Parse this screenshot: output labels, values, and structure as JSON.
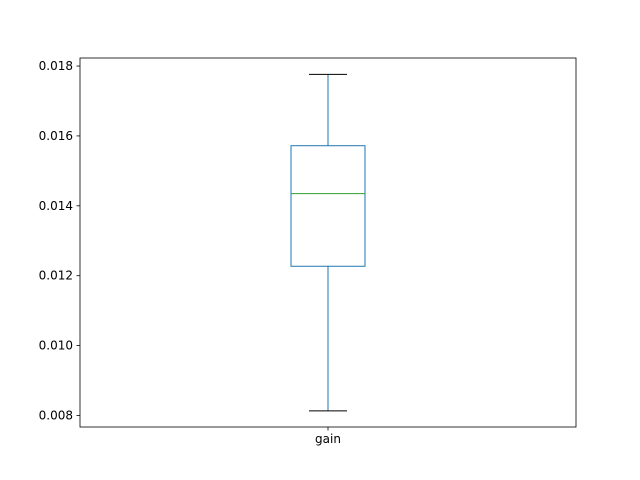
{
  "chart_data": {
    "type": "box",
    "categories": [
      "gain"
    ],
    "boxes": [
      {
        "category": "gain",
        "whisker_low": 0.00813,
        "q1": 0.01227,
        "median": 0.01435,
        "q3": 0.01572,
        "whisker_high": 0.01776
      }
    ],
    "title": "",
    "xlabel": "",
    "ylabel": "",
    "ylim": [
      0.00767,
      0.01823
    ],
    "yticks": [
      0.008,
      0.01,
      0.012,
      0.014,
      0.016,
      0.018
    ],
    "ytick_labels": [
      "0.008",
      "0.010",
      "0.012",
      "0.014",
      "0.016",
      "0.018"
    ],
    "grid": false,
    "colors": {
      "box": "#1f77b4",
      "whisker": "#1f77b4",
      "cap": "#000000",
      "median": "#2ca02c",
      "frame": "#000000"
    }
  }
}
